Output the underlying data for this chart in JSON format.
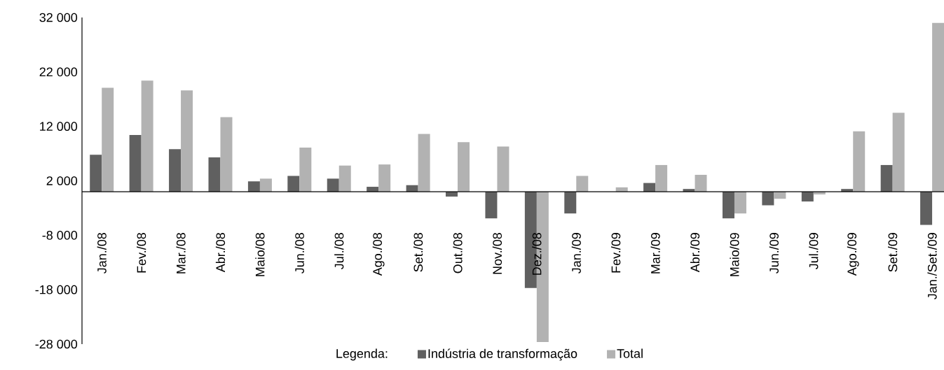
{
  "chart_data": {
    "type": "bar",
    "categories": [
      "Jan./08",
      "Fev./08",
      "Mar./08",
      "Abr./08",
      "Maio/08",
      "Jun./08",
      "Jul./08",
      "Ago./08",
      "Set./08",
      "Out./08",
      "Nov./08",
      "Dez./08",
      "Jan./09",
      "Fev./09",
      "Mar./09",
      "Abr./09",
      "Maio/09",
      "Jun./09",
      "Jul./09",
      "Ago./09",
      "Set./09",
      "Jan./Set./09"
    ],
    "series": [
      {
        "name": "Indústria de transformação",
        "color": "#606060",
        "values": [
          6800,
          10400,
          7800,
          6300,
          1900,
          2900,
          2400,
          900,
          1200,
          -900,
          -4900,
          -17700,
          -4000,
          0,
          1600,
          500,
          -4900,
          -2500,
          -1800,
          500,
          4900,
          -6100
        ]
      },
      {
        "name": "Total",
        "color": "#b2b2b2",
        "values": [
          19100,
          20400,
          18600,
          13700,
          2400,
          8100,
          4800,
          5000,
          10600,
          9100,
          8300,
          -27600,
          2900,
          800,
          4900,
          3100,
          -4000,
          -1300,
          -500,
          11100,
          14500,
          31000
        ]
      }
    ],
    "ylim": [
      -28000,
      32000
    ],
    "yticks": [
      {
        "value": -28000,
        "label": "-28 000"
      },
      {
        "value": -18000,
        "label": "-18 000"
      },
      {
        "value": -8000,
        "label": "-8 000"
      },
      {
        "value": 2000,
        "label": "2 000"
      },
      {
        "value": 12000,
        "label": "12 000"
      },
      {
        "value": 22000,
        "label": "22 000"
      },
      {
        "value": 32000,
        "label": "32 000"
      }
    ],
    "legend": "bottom",
    "legend_title": "Legenda:"
  }
}
